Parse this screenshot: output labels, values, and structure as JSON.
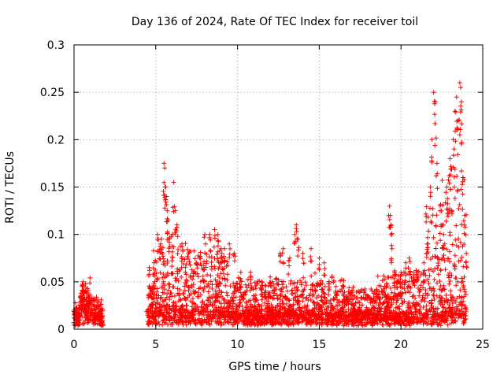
{
  "chart_data": {
    "type": "scatter",
    "title": "Day 136 of 2024, Rate Of TEC Index for receiver toil",
    "xlabel": "GPS time / hours",
    "ylabel": "ROTI / TECUs",
    "xlim": [
      0,
      25
    ],
    "ylim": [
      0,
      0.3
    ],
    "xticks": [
      0,
      5,
      10,
      15,
      20,
      25
    ],
    "xtick_labels": [
      "0",
      "5",
      "10",
      "15",
      "20",
      "25"
    ],
    "yticks": [
      0,
      0.05,
      0.1,
      0.15,
      0.2,
      0.25,
      0.3
    ],
    "ytick_labels": [
      "0",
      "0.05",
      "0.1",
      "0.15",
      "0.2",
      "0.25",
      "0.3"
    ],
    "grid": true,
    "marker": "+",
    "series": [
      {
        "name": "ROTI",
        "color": "#ff0000",
        "envelope": [
          {
            "from": 0.0,
            "to": 0.35,
            "base": 0.012,
            "spread": 0.015
          },
          {
            "from": 0.35,
            "to": 1.0,
            "base": 0.018,
            "spread": 0.03
          },
          {
            "from": 1.0,
            "to": 1.75,
            "base": 0.012,
            "spread": 0.02
          },
          {
            "from": 4.5,
            "to": 4.8,
            "base": 0.012,
            "spread": 0.05
          },
          {
            "from": 4.8,
            "to": 7.0,
            "base": 0.014,
            "spread": 0.08
          },
          {
            "from": 7.0,
            "to": 9.5,
            "base": 0.014,
            "spread": 0.07
          },
          {
            "from": 9.5,
            "to": 12.0,
            "base": 0.012,
            "spread": 0.04
          },
          {
            "from": 12.0,
            "to": 16.5,
            "base": 0.012,
            "spread": 0.045
          },
          {
            "from": 16.5,
            "to": 18.5,
            "base": 0.012,
            "spread": 0.03
          },
          {
            "from": 18.5,
            "to": 21.5,
            "base": 0.012,
            "spread": 0.05
          },
          {
            "from": 21.5,
            "to": 22.5,
            "base": 0.012,
            "spread": 0.12
          },
          {
            "from": 22.5,
            "to": 24.0,
            "base": 0.014,
            "spread": 0.16
          }
        ],
        "points": [
          [
            0.0,
            0.02
          ],
          [
            0.05,
            0.018
          ],
          [
            0.1,
            0.022
          ],
          [
            0.2,
            0.015
          ],
          [
            0.3,
            0.025
          ],
          [
            0.4,
            0.035
          ],
          [
            0.5,
            0.045
          ],
          [
            0.55,
            0.05
          ],
          [
            0.6,
            0.04
          ],
          [
            0.7,
            0.048
          ],
          [
            0.8,
            0.03
          ],
          [
            0.9,
            0.035
          ],
          [
            1.0,
            0.03
          ],
          [
            1.2,
            0.032
          ],
          [
            1.4,
            0.025
          ],
          [
            1.6,
            0.02
          ],
          [
            1.7,
            0.008
          ],
          [
            1.75,
            0.005
          ],
          [
            4.5,
            0.02
          ],
          [
            4.6,
            0.065
          ],
          [
            4.7,
            0.04
          ],
          [
            4.9,
            0.07
          ],
          [
            5.1,
            0.1
          ],
          [
            5.3,
            0.09
          ],
          [
            5.5,
            0.175
          ],
          [
            5.55,
            0.17
          ],
          [
            5.6,
            0.15
          ],
          [
            5.65,
            0.14
          ],
          [
            5.7,
            0.125
          ],
          [
            5.75,
            0.115
          ],
          [
            5.8,
            0.095
          ],
          [
            6.0,
            0.1
          ],
          [
            6.1,
            0.155
          ],
          [
            6.2,
            0.125
          ],
          [
            6.3,
            0.11
          ],
          [
            6.6,
            0.09
          ],
          [
            7.0,
            0.08
          ],
          [
            7.5,
            0.07
          ],
          [
            8.0,
            0.1
          ],
          [
            8.3,
            0.1
          ],
          [
            8.6,
            0.105
          ],
          [
            8.8,
            0.1
          ],
          [
            9.0,
            0.085
          ],
          [
            9.2,
            0.085
          ],
          [
            9.5,
            0.09
          ],
          [
            9.8,
            0.08
          ],
          [
            10.2,
            0.06
          ],
          [
            10.8,
            0.06
          ],
          [
            11.5,
            0.05
          ],
          [
            12.0,
            0.055
          ],
          [
            12.6,
            0.08
          ],
          [
            12.8,
            0.085
          ],
          [
            13.2,
            0.075
          ],
          [
            13.5,
            0.1
          ],
          [
            13.6,
            0.11
          ],
          [
            13.7,
            0.095
          ],
          [
            14.0,
            0.08
          ],
          [
            14.5,
            0.085
          ],
          [
            15.0,
            0.075
          ],
          [
            15.3,
            0.07
          ],
          [
            15.6,
            0.05
          ],
          [
            16.0,
            0.04
          ],
          [
            16.5,
            0.045
          ],
          [
            17.0,
            0.04
          ],
          [
            17.5,
            0.04
          ],
          [
            18.0,
            0.035
          ],
          [
            18.5,
            0.04
          ],
          [
            19.0,
            0.045
          ],
          [
            19.3,
            0.13
          ],
          [
            19.35,
            0.12
          ],
          [
            19.4,
            0.11
          ],
          [
            19.45,
            0.085
          ],
          [
            19.6,
            0.06
          ],
          [
            20.0,
            0.06
          ],
          [
            20.3,
            0.07
          ],
          [
            20.5,
            0.075
          ],
          [
            20.8,
            0.06
          ],
          [
            21.0,
            0.06
          ],
          [
            21.4,
            0.07
          ],
          [
            21.6,
            0.09
          ],
          [
            21.8,
            0.15
          ],
          [
            21.9,
            0.2
          ],
          [
            22.0,
            0.25
          ],
          [
            22.1,
            0.24
          ],
          [
            22.2,
            0.175
          ],
          [
            22.4,
            0.125
          ],
          [
            22.6,
            0.1
          ],
          [
            22.8,
            0.15
          ],
          [
            23.0,
            0.18
          ],
          [
            23.2,
            0.2
          ],
          [
            23.3,
            0.23
          ],
          [
            23.4,
            0.245
          ],
          [
            23.5,
            0.22
          ],
          [
            23.6,
            0.26
          ],
          [
            23.65,
            0.255
          ],
          [
            23.7,
            0.24
          ],
          [
            23.8,
            0.16
          ],
          [
            23.9,
            0.12
          ],
          [
            24.0,
            0.08
          ]
        ]
      }
    ]
  }
}
